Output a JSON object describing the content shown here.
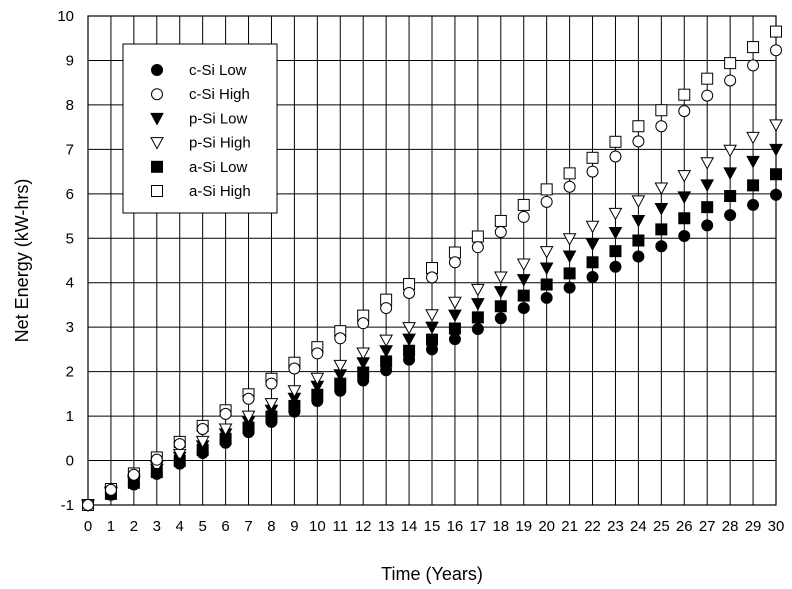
{
  "chart_data": {
    "type": "scatter",
    "title": "",
    "xlabel": "Time (Years)",
    "ylabel": "Net Energy (kW-hrs)",
    "xlim": [
      0,
      30
    ],
    "ylim": [
      -1,
      10
    ],
    "x_ticks": [
      0,
      1,
      2,
      3,
      4,
      5,
      6,
      7,
      8,
      9,
      10,
      11,
      12,
      13,
      14,
      15,
      16,
      17,
      18,
      19,
      20,
      21,
      22,
      23,
      24,
      25,
      26,
      27,
      28,
      29,
      30
    ],
    "y_ticks": [
      -1,
      0,
      1,
      2,
      3,
      4,
      5,
      6,
      7,
      8,
      9,
      10
    ],
    "grid": true,
    "legend_position": "top-left",
    "x": [
      0,
      1,
      2,
      3,
      4,
      5,
      6,
      7,
      8,
      9,
      10,
      11,
      12,
      13,
      14,
      15,
      16,
      17,
      18,
      19,
      20,
      21,
      22,
      23,
      24,
      25,
      26,
      27,
      28,
      29,
      30
    ],
    "series": [
      {
        "name": "c-Si Low",
        "marker": "circle",
        "filled": true,
        "values": [
          -1.0,
          -0.77,
          -0.54,
          -0.3,
          -0.07,
          0.17,
          0.4,
          0.64,
          0.87,
          1.1,
          1.34,
          1.57,
          1.8,
          2.03,
          2.27,
          2.5,
          2.73,
          2.96,
          3.2,
          3.43,
          3.66,
          3.89,
          4.13,
          4.36,
          4.59,
          4.82,
          5.05,
          5.29,
          5.52,
          5.75,
          5.98
        ]
      },
      {
        "name": "c-Si High",
        "marker": "circle",
        "filled": false,
        "values": [
          -1.0,
          -0.66,
          -0.32,
          0.02,
          0.37,
          0.71,
          1.05,
          1.39,
          1.73,
          2.07,
          2.41,
          2.75,
          3.09,
          3.43,
          3.77,
          4.12,
          4.46,
          4.8,
          5.14,
          5.48,
          5.82,
          6.16,
          6.5,
          6.84,
          7.18,
          7.52,
          7.86,
          8.21,
          8.55,
          8.89,
          9.23
        ]
      },
      {
        "name": "p-Si Low",
        "marker": "triangle-down",
        "filled": true,
        "values": [
          -1.0,
          -0.73,
          -0.47,
          -0.2,
          0.07,
          0.33,
          0.6,
          0.87,
          1.13,
          1.4,
          1.67,
          1.93,
          2.2,
          2.47,
          2.73,
          3.0,
          3.27,
          3.53,
          3.8,
          4.07,
          4.33,
          4.6,
          4.87,
          5.13,
          5.4,
          5.67,
          5.93,
          6.2,
          6.47,
          6.73,
          7.0
        ]
      },
      {
        "name": "p-Si High",
        "marker": "triangle-down",
        "filled": false,
        "values": [
          -1.0,
          -0.71,
          -0.43,
          -0.14,
          0.14,
          0.43,
          0.71,
          1.0,
          1.28,
          1.57,
          1.85,
          2.14,
          2.42,
          2.71,
          2.99,
          3.28,
          3.56,
          3.85,
          4.13,
          4.42,
          4.7,
          4.99,
          5.27,
          5.56,
          5.84,
          6.13,
          6.41,
          6.7,
          6.98,
          7.27,
          7.55
        ]
      },
      {
        "name": "a-Si Low",
        "marker": "square",
        "filled": true,
        "values": [
          -1.0,
          -0.75,
          -0.5,
          -0.26,
          -0.01,
          0.24,
          0.49,
          0.74,
          0.99,
          1.23,
          1.48,
          1.73,
          1.98,
          2.23,
          2.47,
          2.72,
          2.97,
          3.22,
          3.47,
          3.71,
          3.96,
          4.21,
          4.46,
          4.71,
          4.95,
          5.2,
          5.45,
          5.7,
          5.95,
          6.19,
          6.44
        ]
      },
      {
        "name": "a-Si High",
        "marker": "square",
        "filled": false,
        "values": [
          -1.0,
          -0.64,
          -0.29,
          0.07,
          0.42,
          0.78,
          1.13,
          1.49,
          1.84,
          2.2,
          2.55,
          2.91,
          3.26,
          3.62,
          3.97,
          4.33,
          4.68,
          5.04,
          5.39,
          5.75,
          6.1,
          6.46,
          6.81,
          7.17,
          7.52,
          7.88,
          8.23,
          8.59,
          8.94,
          9.3,
          9.65
        ]
      }
    ]
  }
}
